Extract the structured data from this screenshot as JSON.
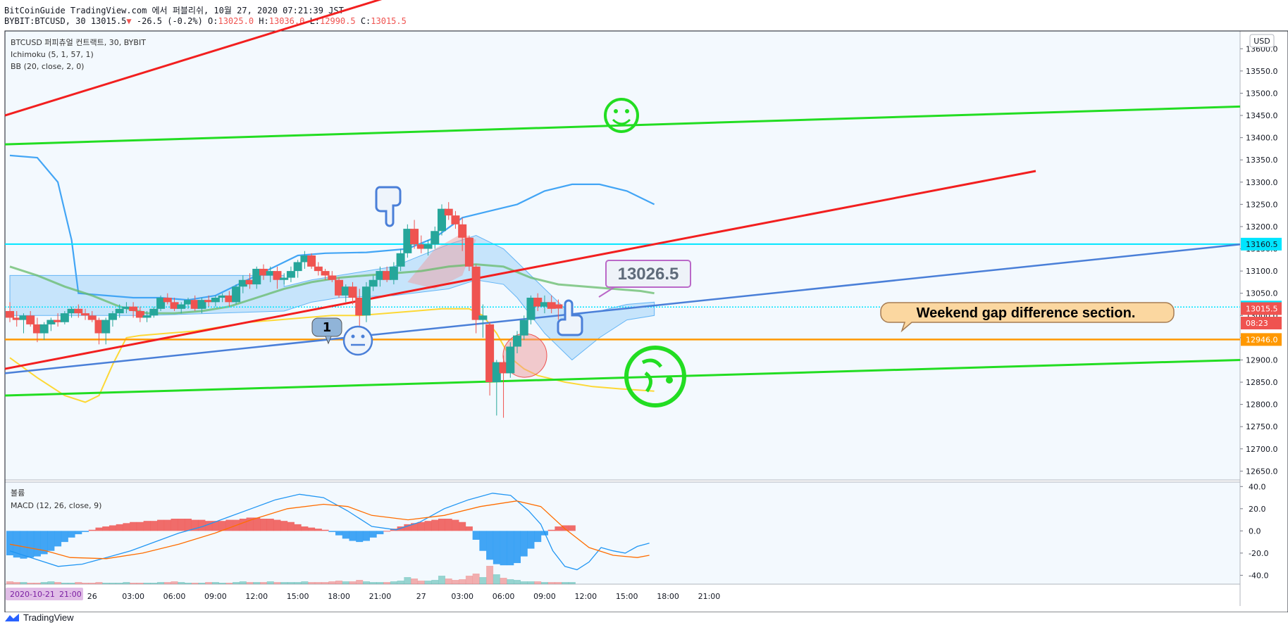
{
  "header": {
    "line1_prefix": "BitCoinGuide TradingView.com 에서 퍼블리쉬, 10월 27, 2020 07:21:39 JST",
    "symbol": "BYBIT:BTCUSD, 30",
    "last": "13015.5",
    "change_arrow": "▼",
    "change": "-26.5 (-0.2%)",
    "o_label": "O:",
    "o": "13025.0",
    "h_label": "H:",
    "h": "13036.0",
    "l_label": "L:",
    "l": "12990.5",
    "c_label": "C:",
    "c": "13015.5"
  },
  "legend": {
    "title": "BTCUSD 퍼피츄얼 컨트랙트, 30, BYBIT",
    "ichimoku": "Ichimoku (5, 1, 57, 1)",
    "bb": "BB (20, close, 2, 0)",
    "volume": "볼륨",
    "macd": "MACD (12, 26, close, 9)"
  },
  "currency_badge": "USD",
  "annotations": {
    "price_callout": "13026.5",
    "weekend_note": "Weekend gap difference section.",
    "number_bubble": "1"
  },
  "price_labels": [
    {
      "text": "13160.5",
      "value": 13160.5,
      "color": "#00e5ff"
    },
    {
      "text": "13019.0",
      "value": 13019.0,
      "color": "#00e5ff"
    },
    {
      "text": "13015.5",
      "value": 13015.5,
      "color": "#ef5350"
    },
    {
      "text": "08:23",
      "value": 12983,
      "color": "#ef5350"
    },
    {
      "text": "12946.0",
      "value": 12946.0,
      "color": "#ff9800"
    }
  ],
  "date_badge": "2020-10-21",
  "time_badge": "21:00",
  "brand": "TradingView",
  "colors": {
    "up": "#26a69a",
    "down": "#ef5350",
    "bb": "#42a5f5",
    "cloud": "#90caf9",
    "kijun": "#66bb6a",
    "tenkan": "#ffeb3b",
    "macd": "#2196f3",
    "signal": "#ff6d00"
  },
  "chart_data": {
    "type": "candlestick",
    "symbol": "BTCUSD",
    "interval": "30",
    "y_axis": {
      "ticks": [
        13600,
        13550,
        13500,
        13450,
        13400,
        13350,
        13300,
        13250,
        13200,
        13150,
        13100,
        13050,
        13000,
        12950,
        12900,
        12850,
        12800,
        12750,
        12700,
        12650
      ],
      "tick_labels": [
        "13600.0",
        "13550.0",
        "13500.0",
        "13450.0",
        "13400.0",
        "13350.0",
        "13300.0",
        "13250.0",
        "13200.0",
        "13150.0",
        "13100.0",
        "13050.0",
        "13000.0",
        "12950.0",
        "12900.0",
        "12850.0",
        "12800.0",
        "12750.0",
        "12700.0",
        "12650.0"
      ],
      "range": [
        12630,
        13640
      ]
    },
    "macd_axis": {
      "ticks": [
        40,
        20,
        0,
        -20,
        -40
      ],
      "tick_labels": [
        "40.0",
        "20.0",
        "0.0",
        "-20.0",
        "-40.0"
      ],
      "range": [
        -48,
        44
      ]
    },
    "x_axis": {
      "labels": [
        "26",
        "03:00",
        "06:00",
        "09:00",
        "12:00",
        "15:00",
        "18:00",
        "21:00",
        "27",
        "03:00",
        "06:00",
        "09:00",
        "12:00",
        "15:00",
        "18:00",
        "21:00"
      ],
      "positions": [
        12,
        18,
        24,
        30,
        36,
        42,
        48,
        54,
        60,
        66,
        72,
        78,
        84,
        90,
        96,
        102
      ]
    },
    "candles": [
      [
        13010,
        13030,
        12985,
        12995
      ],
      [
        12995,
        13010,
        12975,
        12990
      ],
      [
        12990,
        13005,
        12960,
        13000
      ],
      [
        13000,
        13010,
        12975,
        12980
      ],
      [
        12980,
        12995,
        12940,
        12960
      ],
      [
        12960,
        12985,
        12945,
        12980
      ],
      [
        12980,
        12995,
        12965,
        12990
      ],
      [
        12990,
        13005,
        12975,
        12985
      ],
      [
        12985,
        13010,
        12980,
        13005
      ],
      [
        13005,
        13020,
        12995,
        13015
      ],
      [
        13015,
        13025,
        12995,
        13005
      ],
      [
        13005,
        13015,
        12990,
        13000
      ],
      [
        13000,
        13010,
        12985,
        12990
      ],
      [
        12990,
        12995,
        12935,
        12960
      ],
      [
        12960,
        12995,
        12935,
        12990
      ],
      [
        12990,
        13010,
        12975,
        13005
      ],
      [
        13005,
        13025,
        12995,
        13015
      ],
      [
        13015,
        13030,
        13005,
        13020
      ],
      [
        13020,
        13030,
        12995,
        13010
      ],
      [
        13010,
        13020,
        12985,
        12995
      ],
      [
        12995,
        13010,
        12985,
        13000
      ],
      [
        13000,
        13020,
        12995,
        13015
      ],
      [
        13015,
        13045,
        13010,
        13040
      ],
      [
        13040,
        13050,
        13025,
        13030
      ],
      [
        13030,
        13040,
        13010,
        13015
      ],
      [
        13015,
        13030,
        13005,
        13025
      ],
      [
        13025,
        13040,
        13015,
        13035
      ],
      [
        13035,
        13045,
        13010,
        13015
      ],
      [
        13015,
        13040,
        13005,
        13035
      ],
      [
        13035,
        13045,
        13020,
        13030
      ],
      [
        13030,
        13045,
        13020,
        13040
      ],
      [
        13040,
        13050,
        13030,
        13045
      ],
      [
        13045,
        13055,
        13020,
        13030
      ],
      [
        13030,
        13070,
        13025,
        13065
      ],
      [
        13065,
        13090,
        13050,
        13080
      ],
      [
        13080,
        13095,
        13060,
        13070
      ],
      [
        13070,
        13110,
        13060,
        13105
      ],
      [
        13105,
        13115,
        13080,
        13090
      ],
      [
        13090,
        13110,
        13075,
        13100
      ],
      [
        13100,
        13110,
        13060,
        13080
      ],
      [
        13080,
        13095,
        13070,
        13085
      ],
      [
        13085,
        13110,
        13075,
        13100
      ],
      [
        13100,
        13125,
        13085,
        13120
      ],
      [
        13120,
        13145,
        13105,
        13135
      ],
      [
        13135,
        13140,
        13105,
        13110
      ],
      [
        13110,
        13120,
        13090,
        13100
      ],
      [
        13100,
        13105,
        13080,
        13090
      ],
      [
        13090,
        13100,
        13075,
        13080
      ],
      [
        13080,
        13085,
        13040,
        13045
      ],
      [
        13045,
        13070,
        13030,
        13065
      ],
      [
        13065,
        13075,
        13025,
        13040
      ],
      [
        13040,
        13060,
        12975,
        13000
      ],
      [
        13000,
        13075,
        12985,
        13065
      ],
      [
        13065,
        13090,
        13055,
        13080
      ],
      [
        13080,
        13110,
        13065,
        13100
      ],
      [
        13100,
        13110,
        13075,
        13080
      ],
      [
        13080,
        13120,
        13070,
        13110
      ],
      [
        13110,
        13150,
        13100,
        13140
      ],
      [
        13140,
        13205,
        13130,
        13195
      ],
      [
        13195,
        13215,
        13150,
        13160
      ],
      [
        13160,
        13180,
        13140,
        13150
      ],
      [
        13150,
        13170,
        13135,
        13160
      ],
      [
        13160,
        13200,
        13150,
        13190
      ],
      [
        13190,
        13250,
        13180,
        13240
      ],
      [
        13240,
        13255,
        13215,
        13225
      ],
      [
        13225,
        13235,
        13195,
        13205
      ],
      [
        13205,
        13220,
        13145,
        13175
      ],
      [
        13175,
        13180,
        13100,
        13110
      ],
      [
        13110,
        13115,
        12960,
        12990
      ],
      [
        12990,
        13025,
        12950,
        13000
      ],
      [
        12980,
        12985,
        12820,
        12850
      ],
      [
        12850,
        12900,
        12775,
        12895
      ],
      [
        12895,
        12910,
        12770,
        12870
      ],
      [
        12870,
        12940,
        12860,
        12930
      ],
      [
        12930,
        12965,
        12915,
        12955
      ],
      [
        12955,
        13000,
        12945,
        12990
      ],
      [
        12990,
        13045,
        12980,
        13040
      ],
      [
        13040,
        13050,
        13010,
        13020
      ],
      [
        13020,
        13045,
        13005,
        13030
      ],
      [
        13030,
        13045,
        13005,
        13015
      ],
      [
        13025,
        13036,
        12990.5,
        13015.5
      ]
    ],
    "bb_upper": [
      [
        0,
        13360
      ],
      [
        4,
        13355
      ],
      [
        7,
        13300
      ],
      [
        9,
        13170
      ],
      [
        10,
        13050
      ],
      [
        14,
        13045
      ],
      [
        18,
        13040
      ],
      [
        22,
        13040
      ],
      [
        26,
        13035
      ],
      [
        30,
        13045
      ],
      [
        34,
        13075
      ],
      [
        38,
        13105
      ],
      [
        42,
        13135
      ],
      [
        46,
        13140
      ],
      [
        52,
        13142
      ],
      [
        58,
        13150
      ],
      [
        62,
        13175
      ],
      [
        66,
        13220
      ],
      [
        70,
        13235
      ],
      [
        74,
        13250
      ],
      [
        78,
        13280
      ],
      [
        82,
        13295
      ],
      [
        86,
        13295
      ],
      [
        90,
        13280
      ],
      [
        94,
        13250
      ]
    ],
    "bb_lower": [
      [
        0,
        12905
      ],
      [
        4,
        12860
      ],
      [
        8,
        12820
      ],
      [
        11,
        12805
      ],
      [
        13,
        12820
      ],
      [
        15,
        12890
      ],
      [
        17,
        12950
      ],
      [
        19,
        12955
      ],
      [
        23,
        12960
      ],
      [
        27,
        12965
      ],
      [
        31,
        12975
      ],
      [
        35,
        12985
      ],
      [
        39,
        12990
      ],
      [
        43,
        12995
      ],
      [
        47,
        13000
      ],
      [
        51,
        13000
      ],
      [
        55,
        13005
      ],
      [
        59,
        13010
      ],
      [
        63,
        13015
      ],
      [
        67,
        13015
      ],
      [
        69,
        13000
      ],
      [
        71,
        12960
      ],
      [
        73,
        12905
      ],
      [
        75,
        12880
      ],
      [
        77,
        12865
      ],
      [
        81,
        12850
      ],
      [
        85,
        12840
      ],
      [
        89,
        12835
      ],
      [
        94,
        12830
      ]
    ],
    "kijun": [
      [
        0,
        13110
      ],
      [
        4,
        13090
      ],
      [
        8,
        13065
      ],
      [
        12,
        13045
      ],
      [
        16,
        13020
      ],
      [
        20,
        13005
      ],
      [
        24,
        13005
      ],
      [
        28,
        13010
      ],
      [
        32,
        13020
      ],
      [
        36,
        13040
      ],
      [
        40,
        13060
      ],
      [
        44,
        13075
      ],
      [
        48,
        13085
      ],
      [
        52,
        13090
      ],
      [
        56,
        13095
      ],
      [
        60,
        13100
      ],
      [
        64,
        13110
      ],
      [
        68,
        13115
      ],
      [
        72,
        13110
      ],
      [
        76,
        13085
      ],
      [
        80,
        13070
      ],
      [
        84,
        13065
      ],
      [
        88,
        13060
      ],
      [
        92,
        13055
      ],
      [
        94,
        13050
      ]
    ],
    "cloud_top": [
      [
        0,
        13090
      ],
      [
        20,
        13090
      ],
      [
        40,
        13090
      ],
      [
        40,
        13065
      ],
      [
        44,
        13080
      ],
      [
        48,
        13090
      ],
      [
        56,
        13110
      ],
      [
        64,
        13160
      ],
      [
        68,
        13180
      ],
      [
        72,
        13150
      ],
      [
        74,
        13120
      ],
      [
        78,
        13060
      ],
      [
        82,
        13000
      ],
      [
        86,
        13010
      ],
      [
        90,
        13025
      ],
      [
        94,
        13030
      ]
    ],
    "cloud_bottom": [
      [
        0,
        13000
      ],
      [
        20,
        13000
      ],
      [
        40,
        13010
      ],
      [
        40,
        13010
      ],
      [
        44,
        13030
      ],
      [
        48,
        13040
      ],
      [
        56,
        13045
      ],
      [
        64,
        13060
      ],
      [
        68,
        13080
      ],
      [
        72,
        13070
      ],
      [
        74,
        13040
      ],
      [
        78,
        12960
      ],
      [
        82,
        12900
      ],
      [
        86,
        12950
      ],
      [
        90,
        12990
      ],
      [
        94,
        13000
      ]
    ],
    "macd_hist": [
      -22,
      -24,
      -25,
      -24,
      -23,
      -21,
      -18,
      -14,
      -10,
      -6,
      -3,
      -1,
      1,
      3,
      4,
      5,
      6,
      7,
      8,
      8,
      9,
      9,
      10,
      10,
      11,
      11,
      11,
      10,
      10,
      9,
      9,
      9,
      10,
      10,
      11,
      12,
      12,
      11,
      11,
      10,
      9,
      8,
      6,
      4,
      3,
      2,
      1,
      -1,
      -4,
      -7,
      -9,
      -10,
      -9,
      -6,
      -3,
      0,
      2,
      4,
      6,
      7,
      8,
      9,
      10,
      11,
      11,
      10,
      8,
      4,
      -8,
      -18,
      -26,
      -30,
      -31,
      -31,
      -29,
      -23,
      -16,
      -10,
      -4,
      1,
      4,
      5,
      5
    ],
    "macd_line": [
      [
        0,
        -18
      ],
      [
        4,
        -25
      ],
      [
        8,
        -32
      ],
      [
        12,
        -30
      ],
      [
        16,
        -24
      ],
      [
        20,
        -18
      ],
      [
        24,
        -10
      ],
      [
        28,
        -2
      ],
      [
        32,
        4
      ],
      [
        36,
        12
      ],
      [
        40,
        20
      ],
      [
        44,
        28
      ],
      [
        48,
        33
      ],
      [
        52,
        30
      ],
      [
        56,
        18
      ],
      [
        60,
        4
      ],
      [
        64,
        1
      ],
      [
        68,
        8
      ],
      [
        72,
        20
      ],
      [
        76,
        28
      ],
      [
        80,
        34
      ],
      [
        83,
        32
      ],
      [
        86,
        18
      ],
      [
        88,
        6
      ],
      [
        90,
        -18
      ],
      [
        92,
        -32
      ],
      [
        94,
        -35
      ],
      [
        96,
        -28
      ],
      [
        98,
        -15
      ],
      [
        100,
        -18
      ],
      [
        102,
        -20
      ],
      [
        104,
        -14
      ],
      [
        106,
        -11
      ]
    ],
    "signal_line": [
      [
        0,
        -12
      ],
      [
        6,
        -18
      ],
      [
        10,
        -24
      ],
      [
        16,
        -25
      ],
      [
        22,
        -20
      ],
      [
        28,
        -12
      ],
      [
        34,
        -2
      ],
      [
        40,
        10
      ],
      [
        46,
        20
      ],
      [
        52,
        24
      ],
      [
        56,
        22
      ],
      [
        60,
        14
      ],
      [
        66,
        10
      ],
      [
        72,
        14
      ],
      [
        78,
        22
      ],
      [
        84,
        27
      ],
      [
        88,
        22
      ],
      [
        92,
        2
      ],
      [
        96,
        -15
      ],
      [
        100,
        -22
      ],
      [
        104,
        -24
      ],
      [
        106,
        -22
      ]
    ],
    "volume": [
      4,
      3,
      3,
      2,
      2,
      3,
      4,
      3,
      2,
      2,
      3,
      2,
      2,
      3,
      2,
      2,
      2,
      3,
      2,
      2,
      2,
      2,
      3,
      3,
      4,
      3,
      2,
      2,
      2,
      3,
      3,
      2,
      2,
      3,
      4,
      3,
      3,
      3,
      4,
      3,
      3,
      3,
      3,
      4,
      3,
      3,
      3,
      4,
      5,
      4,
      4,
      6,
      4,
      3,
      3,
      3,
      4,
      5,
      10,
      8,
      5,
      5,
      6,
      12,
      8,
      6,
      7,
      12,
      15,
      10,
      26,
      14,
      9,
      7,
      6,
      4,
      4,
      4,
      3,
      3,
      3,
      3,
      3
    ]
  }
}
